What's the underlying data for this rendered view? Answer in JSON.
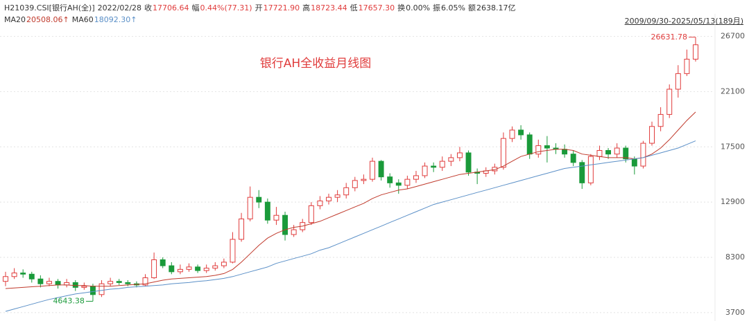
{
  "chart_data": {
    "type": "candlestick",
    "header": {
      "code": "H21039.CSI[银行AH(全)]",
      "date": "2022/02/28",
      "fields": [
        {
          "label": "收",
          "value": "17706.64",
          "color": "#e03b3b"
        },
        {
          "label": "幅",
          "value": "0.44%(77.31)",
          "color": "#e03b3b"
        },
        {
          "label": "开",
          "value": "17721.90",
          "color": "#e03b3b"
        },
        {
          "label": "高",
          "value": "18723.44",
          "color": "#e03b3b"
        },
        {
          "label": "低",
          "value": "17657.30",
          "color": "#e03b3b"
        },
        {
          "label": "换",
          "value": "0.00%",
          "color": "#333333"
        },
        {
          "label": "振",
          "value": "6.05%",
          "color": "#333333"
        },
        {
          "label": "额",
          "value": "2638.17亿",
          "color": "#333333"
        }
      ]
    },
    "range": "2009/09/30-2025/05/13(189月)",
    "title": "银行AH全收益月线图",
    "up_color": "#e03b3b",
    "down_color": "#1a9a3a",
    "ylim": [
      3000,
      28000
    ],
    "yticks": [
      3700,
      8300,
      12900,
      17500,
      22100,
      26700
    ],
    "grid": true,
    "open": [
      6300,
      6700,
      7000,
      6900,
      6500,
      6100,
      6300,
      6000,
      6200,
      5800,
      5900,
      5200,
      6100,
      6300,
      6200,
      6100,
      6000,
      6600,
      8100,
      7600,
      7100,
      7300,
      7500,
      7200,
      7400,
      7600,
      7900,
      9800,
      11500,
      13300,
      12900,
      11400,
      11800,
      10200,
      10600,
      11200,
      12600,
      13000,
      13300,
      13500,
      14100,
      14700,
      14800,
      16300,
      15000,
      14500,
      14300,
      14800,
      15100,
      15900,
      15800,
      16300,
      16600,
      17000,
      15400,
      15300,
      15500,
      15800,
      18200,
      18900,
      18500,
      16900,
      17600,
      17400,
      17300,
      16900,
      16200,
      14500,
      16700,
      17200,
      16900,
      17400,
      16500,
      15900,
      17800,
      19200,
      20200,
      22300,
      23600,
      24800
    ],
    "high": [
      7100,
      7400,
      7300,
      7100,
      6800,
      6600,
      6500,
      6500,
      6400,
      6200,
      6100,
      6400,
      6600,
      6500,
      6400,
      6300,
      6900,
      8700,
      8300,
      7900,
      7700,
      7800,
      7700,
      7700,
      7900,
      8200,
      10400,
      12000,
      14200,
      13900,
      13200,
      12500,
      12100,
      11000,
      11500,
      12900,
      13400,
      13600,
      13900,
      14500,
      15000,
      15200,
      16600,
      16400,
      15300,
      14800,
      15100,
      15500,
      16200,
      16200,
      16700,
      16900,
      17500,
      17200,
      15700,
      15800,
      16100,
      18700,
      19200,
      19300,
      18700,
      18100,
      18400,
      17800,
      17700,
      17200,
      16400,
      16900,
      17600,
      17400,
      17800,
      17600,
      16700,
      18000,
      19600,
      20800,
      22700,
      24300,
      25600,
      26631.78
    ],
    "low": [
      5900,
      6500,
      6600,
      6200,
      5800,
      5900,
      5700,
      5800,
      5500,
      5600,
      4643.38,
      5000,
      5900,
      6000,
      5900,
      5800,
      5900,
      6500,
      7400,
      6900,
      6900,
      7100,
      7000,
      7000,
      7200,
      7400,
      7800,
      9600,
      11300,
      12400,
      11100,
      11000,
      9700,
      10000,
      10400,
      11000,
      12300,
      12700,
      12900,
      13200,
      13800,
      14400,
      14600,
      14700,
      14100,
      13600,
      14000,
      14500,
      14900,
      15400,
      15500,
      15900,
      16300,
      15100,
      14400,
      15000,
      15200,
      15600,
      17900,
      18100,
      16500,
      16600,
      16200,
      16900,
      16600,
      15900,
      14000,
      14300,
      16400,
      16500,
      16600,
      16200,
      15200,
      15700,
      17600,
      18800,
      19900,
      21600,
      23400,
      24600
    ],
    "close": [
      6700,
      7000,
      6900,
      6500,
      6100,
      6300,
      6000,
      6200,
      5800,
      5900,
      5200,
      6100,
      6300,
      6200,
      6100,
      6000,
      6600,
      8100,
      7600,
      7100,
      7300,
      7500,
      7200,
      7400,
      7600,
      7900,
      9800,
      11500,
      13300,
      12900,
      11400,
      11800,
      10200,
      10600,
      11200,
      12600,
      13000,
      13300,
      13500,
      14100,
      14700,
      14800,
      16300,
      15000,
      14500,
      14300,
      14800,
      15100,
      15900,
      15800,
      16300,
      16600,
      17000,
      15400,
      15300,
      15500,
      15800,
      18200,
      18900,
      18500,
      16900,
      17600,
      17400,
      17300,
      16900,
      16200,
      14500,
      16700,
      17200,
      16900,
      17400,
      16500,
      15900,
      17800,
      19200,
      20200,
      22300,
      23600,
      24800,
      26000
    ],
    "series": [
      {
        "name": "MA20",
        "label_value": "20508.06↑",
        "color": "#c0392b",
        "values": [
          5700,
          5750,
          5800,
          5850,
          5900,
          5950,
          6000,
          6000,
          5950,
          5950,
          5900,
          5900,
          5900,
          5950,
          6000,
          6050,
          6100,
          6250,
          6400,
          6500,
          6550,
          6600,
          6650,
          6700,
          6800,
          6950,
          7300,
          7900,
          8600,
          9300,
          9900,
          10300,
          10600,
          10800,
          10900,
          11100,
          11300,
          11600,
          11900,
          12200,
          12500,
          12800,
          13200,
          13500,
          13700,
          13900,
          14000,
          14200,
          14400,
          14600,
          14800,
          15000,
          15200,
          15300,
          15400,
          15500,
          15600,
          15900,
          16300,
          16700,
          16900,
          17100,
          17200,
          17300,
          17300,
          17200,
          16900,
          16800,
          16700,
          16600,
          16600,
          16600,
          16500,
          16600,
          16900,
          17400,
          18100,
          18900,
          19700,
          20400
        ]
      },
      {
        "name": "MA60",
        "label_value": "18092.30↑",
        "color": "#5a8fc7",
        "values": [
          3800,
          4000,
          4200,
          4400,
          4600,
          4800,
          4950,
          5100,
          5250,
          5350,
          5450,
          5550,
          5650,
          5700,
          5800,
          5850,
          5900,
          5950,
          6000,
          6100,
          6150,
          6200,
          6300,
          6350,
          6450,
          6550,
          6700,
          6900,
          7100,
          7300,
          7500,
          7800,
          8000,
          8200,
          8400,
          8600,
          8900,
          9100,
          9400,
          9700,
          10000,
          10300,
          10600,
          10900,
          11200,
          11500,
          11800,
          12100,
          12400,
          12700,
          12900,
          13100,
          13300,
          13500,
          13700,
          13900,
          14100,
          14300,
          14500,
          14700,
          14900,
          15100,
          15300,
          15500,
          15700,
          15800,
          15900,
          16000,
          16100,
          16200,
          16300,
          16400,
          16500,
          16600,
          16800,
          17000,
          17200,
          17400,
          17700,
          18000
        ]
      }
    ]
  }
}
